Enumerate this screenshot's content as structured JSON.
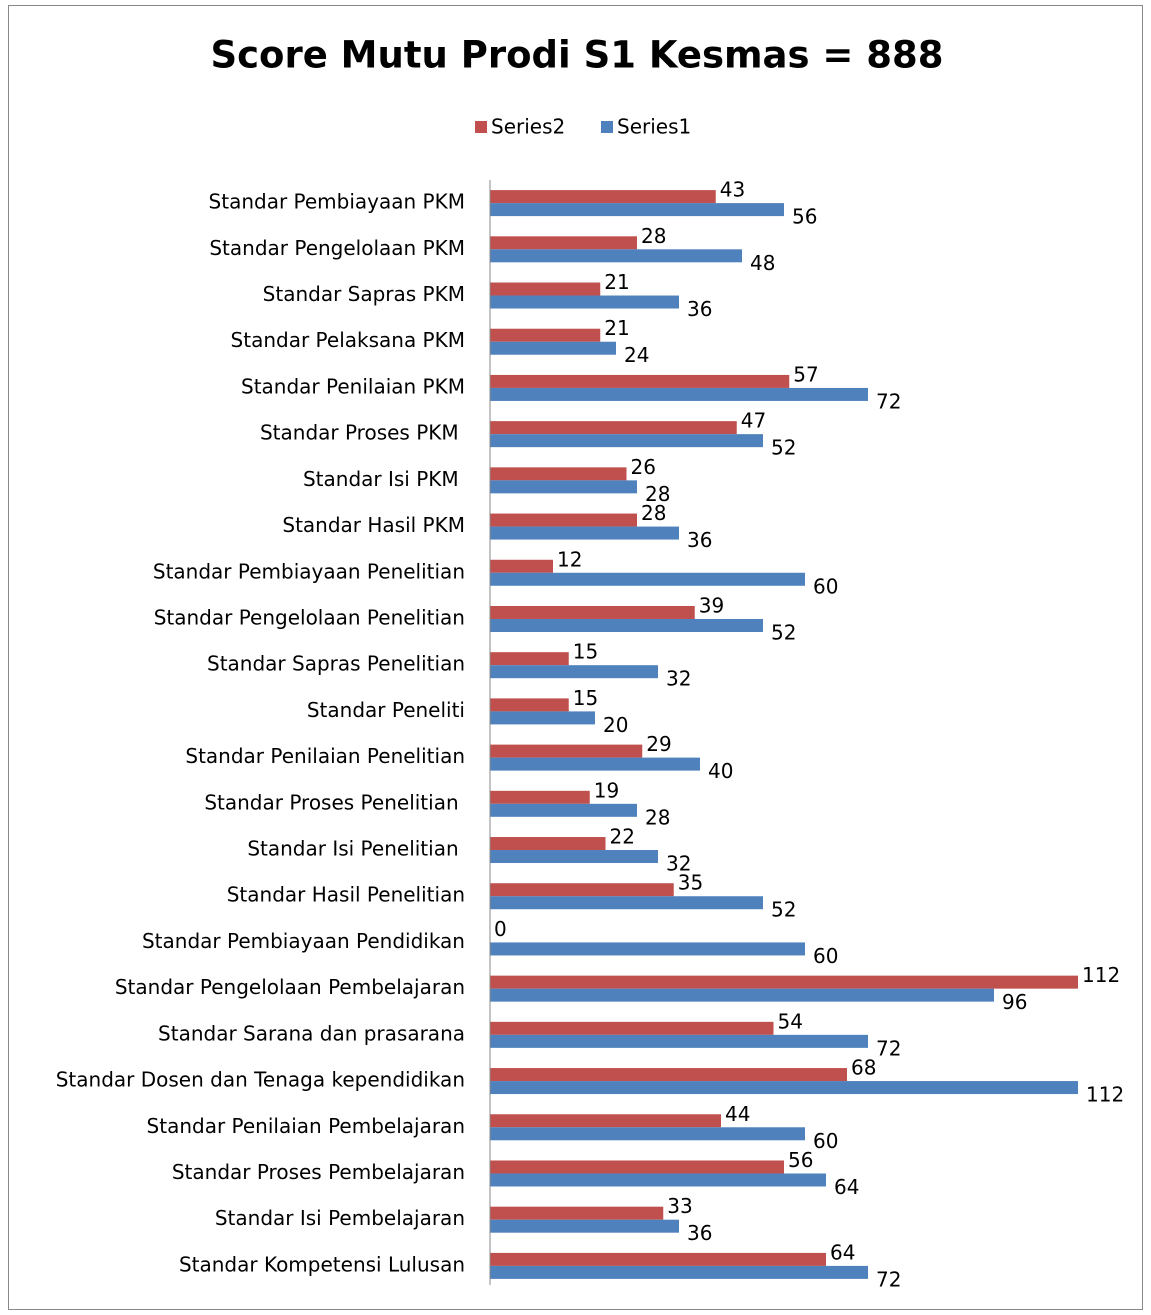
{
  "chart_data": {
    "type": "hbar",
    "title": "Score Mutu Prodi S1 Kesmas = 888",
    "categories": [
      "Standar Pembiayaan PKM",
      "Standar Pengelolaan PKM",
      "Standar Sapras PKM",
      "Standar Pelaksana PKM",
      "Standar Penilaian PKM",
      "Standar Proses PKM ",
      "Standar Isi PKM ",
      "Standar Hasil PKM",
      "Standar Pembiayaan Penelitian",
      "Standar Pengelolaan Penelitian",
      "Standar Sapras Penelitian",
      "Standar Peneliti",
      "Standar Penilaian Penelitian",
      "Standar Proses Penelitian ",
      "Standar Isi Penelitian ",
      "Standar Hasil Penelitian",
      "Standar Pembiayaan Pendidikan",
      "Standar Pengelolaan Pembelajaran",
      "Standar Sarana dan prasarana",
      "Standar Dosen dan Tenaga kependidikan",
      "Standar Penilaian Pembelajaran",
      "Standar Proses Pembelajaran",
      "Standar Isi Pembelajaran",
      "Standar Kompetensi Lulusan"
    ],
    "series": [
      {
        "name": "Series2",
        "color": "#c0504d",
        "values": [
          43,
          28,
          21,
          21,
          57,
          47,
          26,
          28,
          12,
          39,
          15,
          15,
          29,
          19,
          22,
          35,
          0,
          112,
          54,
          68,
          44,
          56,
          33,
          64
        ]
      },
      {
        "name": "Series1",
        "color": "#4f81bd",
        "values": [
          56,
          48,
          36,
          24,
          72,
          52,
          28,
          36,
          60,
          52,
          32,
          20,
          40,
          28,
          32,
          52,
          60,
          96,
          72,
          112,
          60,
          64,
          36,
          72
        ]
      }
    ],
    "xlim": [
      0,
      120
    ],
    "legend": "top"
  }
}
